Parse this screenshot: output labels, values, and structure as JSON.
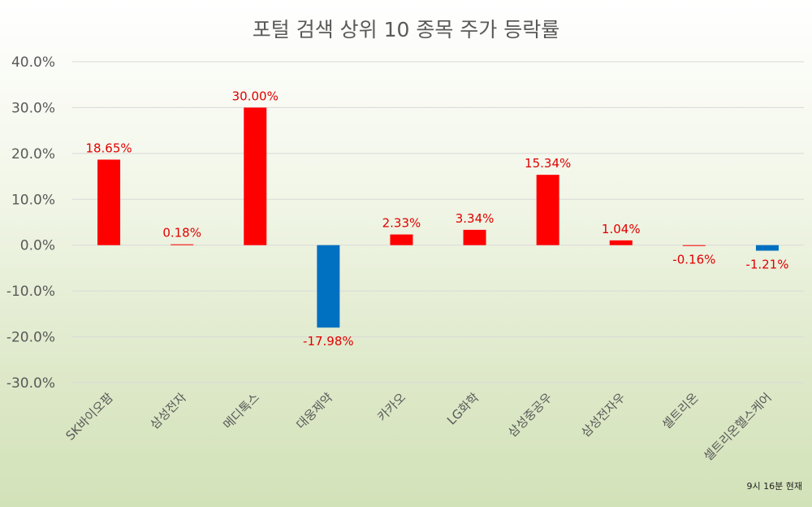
{
  "chart_data": {
    "type": "bar",
    "title": "포털 검색 상위 10 종목 주가 등락률",
    "categories": [
      "SK바이오팜",
      "삼성전자",
      "메디톡스",
      "대웅제약",
      "카카오",
      "LG화학",
      "삼성중공우",
      "삼성전자우",
      "셀트리온",
      "셀트리온헬스케어"
    ],
    "values": [
      18.65,
      0.18,
      30.0,
      -17.98,
      2.33,
      3.34,
      15.34,
      1.04,
      -0.16,
      -1.21
    ],
    "data_labels": [
      "18.65%",
      "0.18%",
      "30.00%",
      "-17.98%",
      "2.33%",
      "3.34%",
      "15.34%",
      "1.04%",
      "-0.16%",
      "-1.21%"
    ],
    "bar_colors": [
      "#ff0000",
      "#ff0000",
      "#ff0000",
      "#0070c0",
      "#ff0000",
      "#ff0000",
      "#ff0000",
      "#ff0000",
      "#ff0000",
      "#0070c0"
    ],
    "ylim": [
      -30,
      40
    ],
    "yticks": [
      40,
      30,
      20,
      10,
      0,
      -10,
      -20,
      -30
    ],
    "ytick_labels": [
      "40.0%",
      "30.0%",
      "20.0%",
      "10.0%",
      "0.0%",
      "-10.0%",
      "-20.0%",
      "-30.0%"
    ],
    "grid": true,
    "data_label_color": "#e00000",
    "footnote": "9시 16분 현재"
  }
}
